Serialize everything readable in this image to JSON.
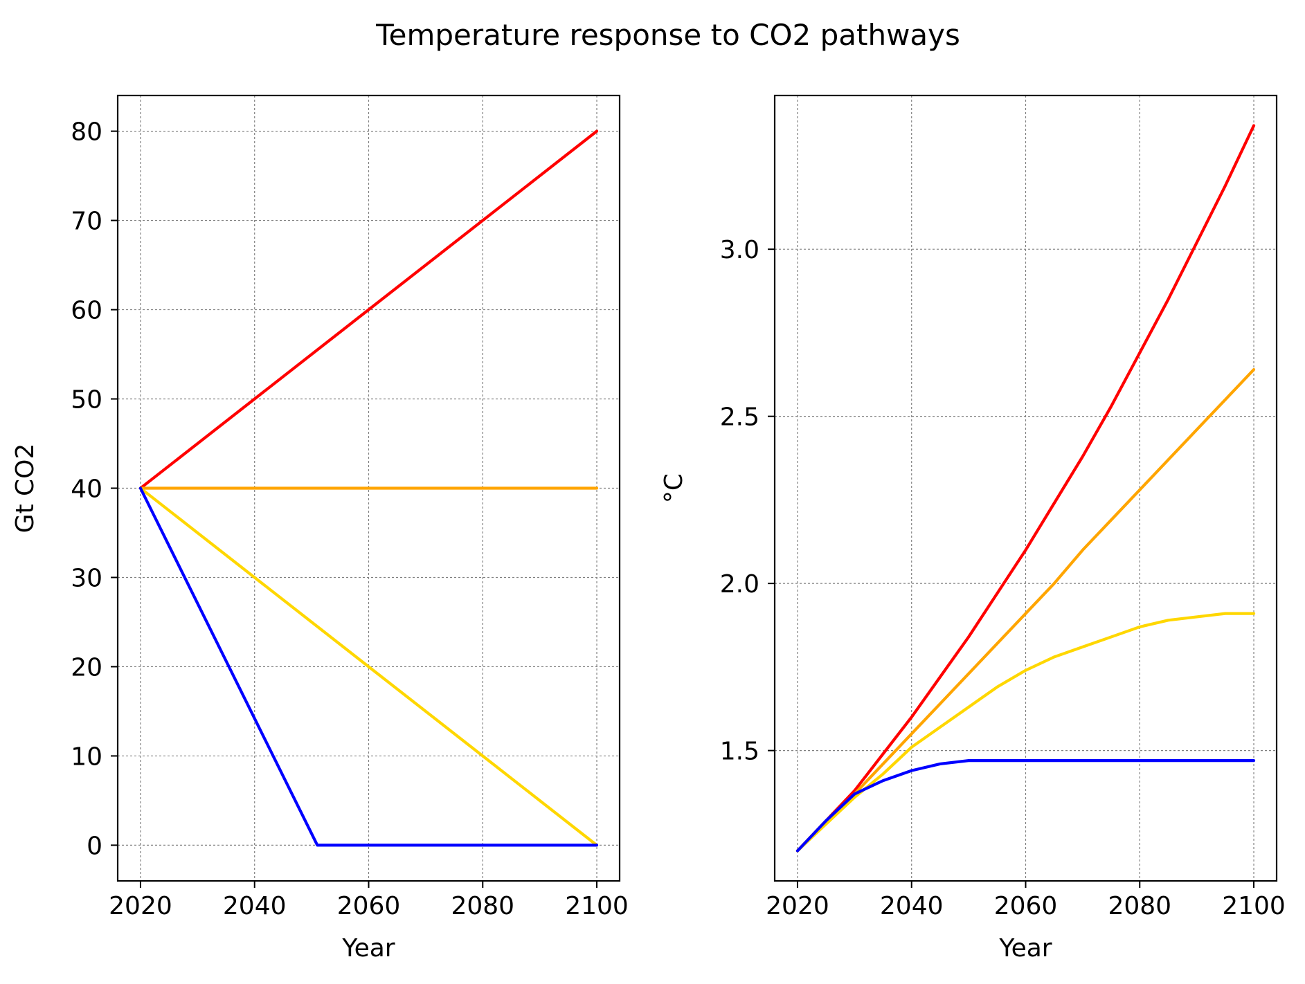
{
  "figure": {
    "title": "Temperature response to CO2 pathways"
  },
  "chart_data": [
    {
      "type": "line",
      "title": "",
      "xlabel": "Year",
      "ylabel": "Gt CO2",
      "xlim": [
        2016,
        2104
      ],
      "ylim": [
        -4,
        84
      ],
      "xticks": [
        2020,
        2040,
        2060,
        2080,
        2100
      ],
      "yticks": [
        0,
        10,
        20,
        30,
        40,
        50,
        60,
        70,
        80
      ],
      "ytick_format": "int",
      "grid": true,
      "legend": "none",
      "series": [
        {
          "color": "#ff0000",
          "x": [
            2020,
            2100
          ],
          "y": [
            40,
            80
          ]
        },
        {
          "color": "#ffa500",
          "x": [
            2020,
            2100
          ],
          "y": [
            40,
            40
          ]
        },
        {
          "color": "#ffd700",
          "x": [
            2020,
            2100
          ],
          "y": [
            40,
            0
          ]
        },
        {
          "color": "#0000ff",
          "x": [
            2020,
            2050,
            2051,
            2100
          ],
          "y": [
            40,
            1.3,
            0,
            0
          ]
        }
      ]
    },
    {
      "type": "line",
      "title": "",
      "xlabel": "Year",
      "ylabel": "°C",
      "xlim": [
        2016,
        2104
      ],
      "ylim": [
        1.11,
        3.46
      ],
      "xticks": [
        2020,
        2040,
        2060,
        2080,
        2100
      ],
      "yticks": [
        1.5,
        2.0,
        2.5,
        3.0
      ],
      "ytick_format": "1dp",
      "grid": true,
      "legend": "none",
      "series": [
        {
          "color": "#ff0000",
          "x": [
            2020,
            2025,
            2030,
            2035,
            2040,
            2045,
            2050,
            2055,
            2060,
            2065,
            2070,
            2075,
            2080,
            2085,
            2090,
            2095,
            2100
          ],
          "y": [
            1.2,
            1.29,
            1.38,
            1.49,
            1.6,
            1.72,
            1.84,
            1.97,
            2.1,
            2.24,
            2.38,
            2.53,
            2.69,
            2.85,
            3.02,
            3.19,
            3.37
          ]
        },
        {
          "color": "#ffa500",
          "x": [
            2020,
            2025,
            2030,
            2035,
            2040,
            2045,
            2050,
            2055,
            2060,
            2065,
            2070,
            2075,
            2080,
            2085,
            2090,
            2095,
            2100
          ],
          "y": [
            1.2,
            1.29,
            1.37,
            1.46,
            1.55,
            1.64,
            1.73,
            1.82,
            1.91,
            2.0,
            2.1,
            2.19,
            2.28,
            2.37,
            2.46,
            2.55,
            2.64
          ]
        },
        {
          "color": "#ffd700",
          "x": [
            2020,
            2025,
            2030,
            2035,
            2040,
            2045,
            2050,
            2055,
            2060,
            2065,
            2070,
            2075,
            2080,
            2085,
            2090,
            2095,
            2100
          ],
          "y": [
            1.2,
            1.28,
            1.36,
            1.43,
            1.51,
            1.57,
            1.63,
            1.69,
            1.74,
            1.78,
            1.81,
            1.84,
            1.87,
            1.89,
            1.9,
            1.91,
            1.91
          ]
        },
        {
          "color": "#0000ff",
          "x": [
            2020,
            2025,
            2030,
            2035,
            2040,
            2045,
            2050,
            2055,
            2060,
            2070,
            2080,
            2090,
            2100
          ],
          "y": [
            1.2,
            1.29,
            1.37,
            1.41,
            1.44,
            1.46,
            1.47,
            1.47,
            1.47,
            1.47,
            1.47,
            1.47,
            1.47
          ]
        }
      ]
    }
  ]
}
